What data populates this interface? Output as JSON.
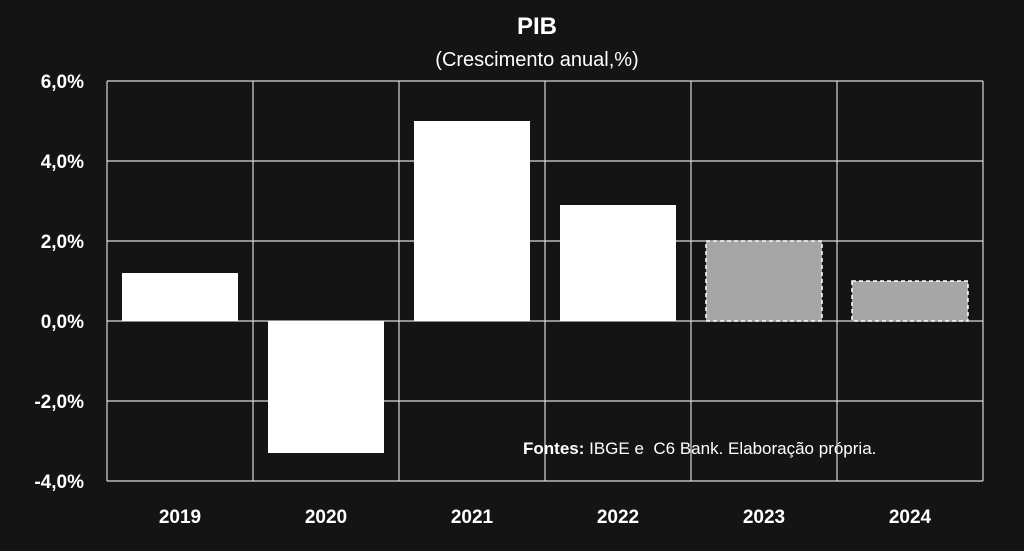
{
  "chart_data": {
    "type": "bar",
    "title": "PIB",
    "subtitle": "(Crescimento anual,%)",
    "categories": [
      "2019",
      "2020",
      "2021",
      "2022",
      "2023",
      "2024"
    ],
    "values": [
      1.2,
      -3.3,
      5.0,
      2.9,
      2.0,
      1.0
    ],
    "projected": [
      false,
      false,
      false,
      false,
      true,
      true
    ],
    "ylim": [
      -4,
      6
    ],
    "yticks": [
      "6,0%",
      "4,0%",
      "2,0%",
      "0,0%",
      "-2,0%",
      "-4,0%"
    ],
    "ytick_values": [
      6,
      4,
      2,
      0,
      -2,
      -4
    ],
    "grid": true,
    "colors": {
      "background": "#141414",
      "actual": "#ffffff",
      "projected": "#a6a6a6",
      "grid": "#d9d9d9"
    },
    "annotation": {
      "label": "Fontes:",
      "text": " IBGE e  C6 Bank. Elaboração própria."
    }
  }
}
